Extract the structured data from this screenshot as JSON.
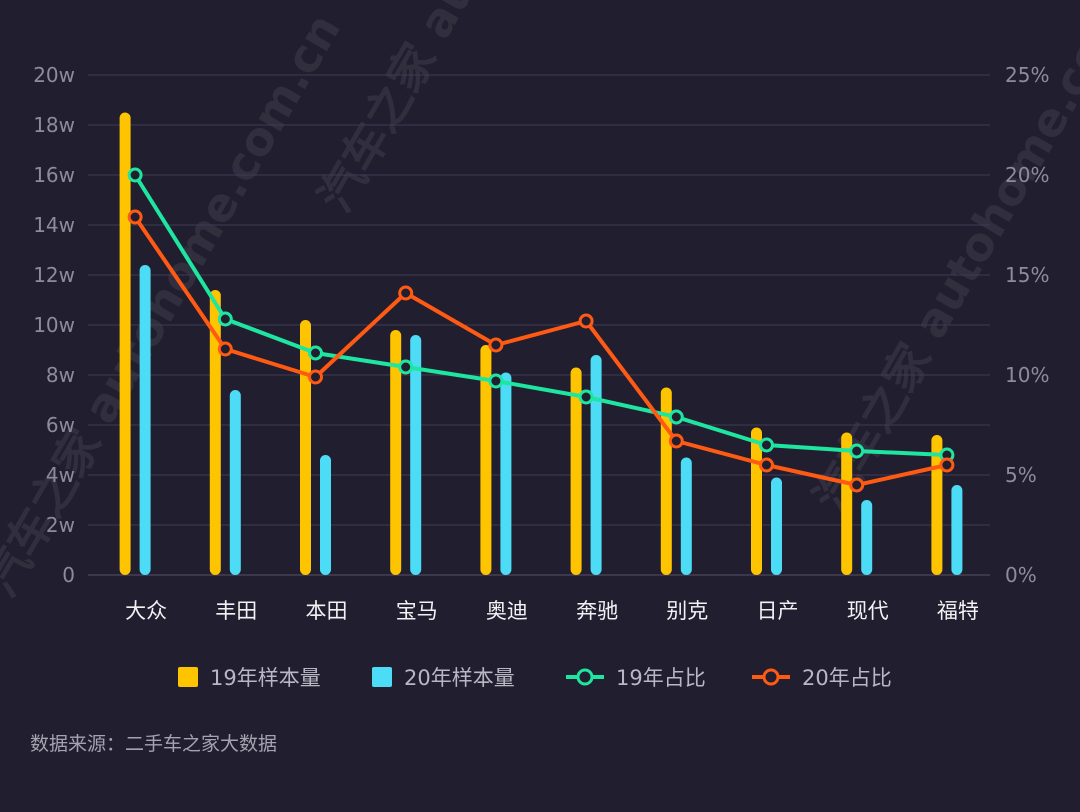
{
  "chart_data": {
    "type": "bar+line",
    "categories": [
      "大众",
      "丰田",
      "本田",
      "宝马",
      "奥迪",
      "奔驰",
      "别克",
      "日产",
      "现代",
      "福特"
    ],
    "y_left": {
      "ylim": [
        0,
        20
      ],
      "ticks": [
        0,
        2,
        4,
        6,
        8,
        10,
        12,
        14,
        16,
        18,
        20
      ],
      "tick_labels": [
        "0",
        "2w",
        "4w",
        "6w",
        "8w",
        "10w",
        "12w",
        "14w",
        "16w",
        "18w",
        "20w"
      ]
    },
    "y_right": {
      "ylim": [
        0,
        25
      ],
      "ticks": [
        0,
        5,
        10,
        15,
        20,
        25
      ],
      "tick_labels": [
        "0%",
        "5%",
        "10%",
        "15%",
        "20%",
        "25%"
      ]
    },
    "series": [
      {
        "name": "19年样本量",
        "type": "bar",
        "axis": "left",
        "color": "#ffc400",
        "values": [
          18.5,
          11.4,
          10.2,
          9.8,
          9.2,
          8.3,
          7.5,
          5.9,
          5.7,
          5.6
        ]
      },
      {
        "name": "20年样本量",
        "type": "bar",
        "axis": "left",
        "color": "#4ddcf5",
        "values": [
          12.4,
          7.4,
          4.8,
          9.6,
          8.1,
          8.8,
          4.7,
          3.9,
          3.0,
          3.6
        ]
      },
      {
        "name": "19年占比",
        "type": "line",
        "axis": "right",
        "color": "#1ee6a0",
        "values": [
          20.0,
          12.8,
          11.1,
          10.4,
          9.7,
          8.9,
          7.9,
          6.5,
          6.2,
          6.0
        ]
      },
      {
        "name": "20年占比",
        "type": "line",
        "axis": "right",
        "color": "#ff5a14",
        "values": [
          17.9,
          11.3,
          9.9,
          14.1,
          11.5,
          12.7,
          6.7,
          5.5,
          4.5,
          5.5
        ]
      }
    ],
    "grid": true,
    "legend_position": "bottom"
  },
  "source_text": "数据来源：二手车之家大数据",
  "watermarks": [
    "汽车之家 autohome.com.cn",
    "汽车之家 autohome.com.cn",
    "汽车之家 autohome.com.cn"
  ]
}
